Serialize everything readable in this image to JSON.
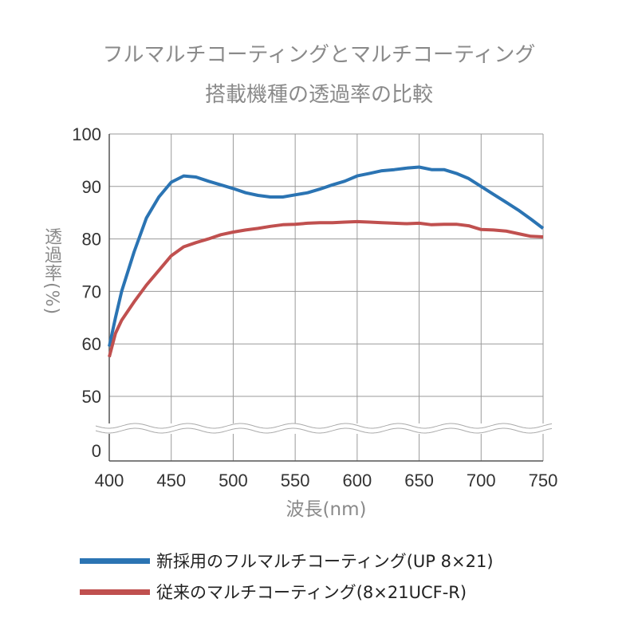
{
  "chart_data": {
    "type": "line",
    "title": [
      "フルマルチコーティングとマルチコーティング",
      "搭載機種の透過率の比較"
    ],
    "xlabel": "波長(nm)",
    "ylabel": "透過率(%)",
    "xlim": [
      400,
      750
    ],
    "ylim": [
      50,
      100
    ],
    "x_ticks": [
      400,
      450,
      500,
      550,
      600,
      650,
      700,
      750
    ],
    "y_ticks": [
      50,
      60,
      70,
      80,
      90,
      100
    ],
    "y_break_zero_label": "0",
    "grid": true,
    "legend_position": "bottom",
    "series": [
      {
        "name": "新採用のフルマルチコーティング(UP 8×21)",
        "color": "#2b74b3",
        "x": [
          400,
          405,
          410,
          420,
          430,
          440,
          450,
          460,
          470,
          480,
          490,
          500,
          510,
          520,
          530,
          540,
          550,
          560,
          570,
          580,
          590,
          600,
          610,
          620,
          630,
          640,
          650,
          660,
          670,
          680,
          690,
          700,
          710,
          720,
          730,
          740,
          750
        ],
        "y": [
          59.5,
          65,
          70,
          77.5,
          84,
          88,
          90.8,
          92,
          91.8,
          91,
          90.3,
          89.6,
          88.8,
          88.3,
          88,
          88,
          88.4,
          88.8,
          89.5,
          90.3,
          91,
          92,
          92.5,
          93,
          93.2,
          93.5,
          93.7,
          93.2,
          93.2,
          92.5,
          91.5,
          90,
          88.5,
          87,
          85.5,
          83.8,
          82
        ]
      },
      {
        "name": "従来のマルチコーティング(8×21UCF-R)",
        "color": "#c0504f",
        "x": [
          400,
          405,
          410,
          420,
          430,
          440,
          450,
          460,
          470,
          480,
          490,
          500,
          510,
          520,
          530,
          540,
          550,
          560,
          570,
          580,
          590,
          600,
          610,
          620,
          630,
          640,
          650,
          660,
          670,
          680,
          690,
          700,
          710,
          720,
          730,
          740,
          750
        ],
        "y": [
          57.5,
          62,
          64.5,
          68,
          71.2,
          74,
          76.8,
          78.5,
          79.3,
          80,
          80.8,
          81.3,
          81.7,
          82,
          82.4,
          82.7,
          82.8,
          83,
          83.1,
          83.1,
          83.2,
          83.3,
          83.2,
          83.1,
          83,
          82.9,
          83,
          82.7,
          82.8,
          82.8,
          82.5,
          81.8,
          81.7,
          81.5,
          81,
          80.5,
          80.4
        ]
      }
    ]
  }
}
